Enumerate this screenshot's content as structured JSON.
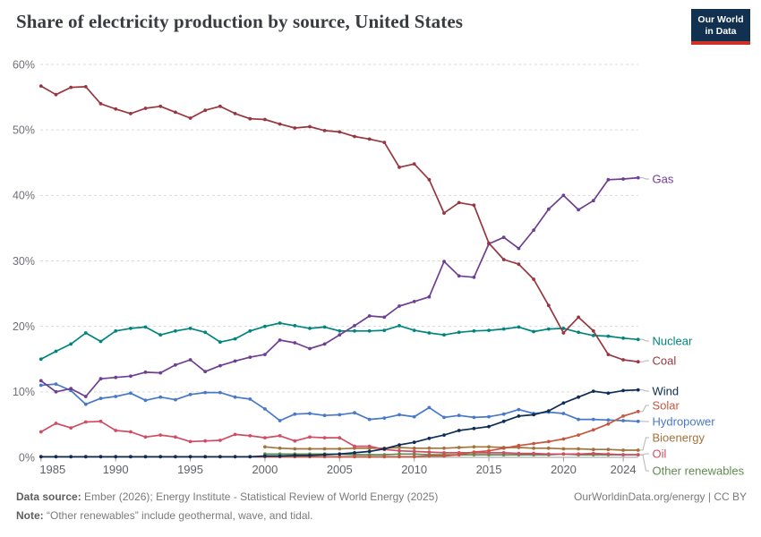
{
  "header": {
    "title": "Share of electricity production by source, United States",
    "logo_line1": "Our World",
    "logo_line2": "in Data",
    "logo_colors": {
      "box": "#12304f",
      "bar": "#cd3227"
    }
  },
  "chart_data": {
    "type": "line",
    "title": "Share of electricity production by source, United States",
    "xlabel": "",
    "ylabel": "",
    "grid": "dashed",
    "legend_position": "right-end-labels",
    "x_axis": {
      "range": [
        1985,
        2025
      ],
      "ticks": [
        1985,
        1990,
        1995,
        2000,
        2005,
        2010,
        2015,
        2020,
        2024
      ]
    },
    "y_axis": {
      "range": [
        0,
        60
      ],
      "ticks": [
        {
          "v": 0,
          "label": "0%"
        },
        {
          "v": 10,
          "label": "10%"
        },
        {
          "v": 20,
          "label": "20%"
        },
        {
          "v": 30,
          "label": "30%"
        },
        {
          "v": 40,
          "label": "40%"
        },
        {
          "v": 50,
          "label": "50%"
        },
        {
          "v": 60,
          "label": "60%"
        }
      ]
    },
    "x": [
      1985,
      1986,
      1987,
      1988,
      1989,
      1990,
      1991,
      1992,
      1993,
      1994,
      1995,
      1996,
      1997,
      1998,
      1999,
      2000,
      2001,
      2002,
      2003,
      2004,
      2005,
      2006,
      2007,
      2008,
      2009,
      2010,
      2011,
      2012,
      2013,
      2014,
      2015,
      2016,
      2017,
      2018,
      2019,
      2020,
      2021,
      2022,
      2023,
      2024,
      2025
    ],
    "series": [
      {
        "id": "other-renewables",
        "name": "Other renewables",
        "color": "#5f8b51",
        "label_y": 526,
        "values": [
          null,
          null,
          null,
          null,
          null,
          null,
          null,
          null,
          null,
          null,
          null,
          null,
          null,
          null,
          null,
          0.5,
          0.5,
          0.5,
          0.5,
          0.5,
          0.5,
          0.4,
          0.4,
          0.4,
          0.5,
          0.5,
          0.4,
          0.4,
          0.4,
          0.4,
          0.4,
          0.4,
          0.4,
          0.4,
          0.4,
          0.5,
          0.4,
          0.4,
          0.4,
          0.4,
          0.4
        ]
      },
      {
        "id": "bioenergy",
        "name": "Bioenergy",
        "color": "#a3733c",
        "label_y": 489,
        "values": [
          null,
          null,
          null,
          null,
          null,
          null,
          null,
          null,
          null,
          null,
          null,
          null,
          null,
          null,
          null,
          1.6,
          1.4,
          1.3,
          1.3,
          1.3,
          1.3,
          1.4,
          1.4,
          1.4,
          1.5,
          1.4,
          1.4,
          1.4,
          1.5,
          1.6,
          1.6,
          1.5,
          1.5,
          1.4,
          1.4,
          1.3,
          1.3,
          1.2,
          1.2,
          1.1,
          1.1
        ]
      },
      {
        "id": "oil",
        "name": "Oil",
        "color": "#cf4e63",
        "label_y": 507,
        "values": [
          3.9,
          5.2,
          4.5,
          5.4,
          5.5,
          4.1,
          3.9,
          3.1,
          3.4,
          3.1,
          2.4,
          2.5,
          2.6,
          3.5,
          3.3,
          3.0,
          3.3,
          2.5,
          3.1,
          3.0,
          3.0,
          1.7,
          1.7,
          1.2,
          1.0,
          0.9,
          0.8,
          0.7,
          0.7,
          0.7,
          0.7,
          0.7,
          0.6,
          0.6,
          0.5,
          0.5,
          0.5,
          0.6,
          0.5,
          0.4,
          0.4
        ]
      },
      {
        "id": "hydropower",
        "name": "Hydropower",
        "color": "#4878c9",
        "label_y": 471,
        "values": [
          11.0,
          11.2,
          10.2,
          8.1,
          9.0,
          9.3,
          9.8,
          8.7,
          9.2,
          8.8,
          9.6,
          9.9,
          9.9,
          9.2,
          8.9,
          7.4,
          5.6,
          6.6,
          6.7,
          6.4,
          6.5,
          6.8,
          5.8,
          6.0,
          6.5,
          6.2,
          7.6,
          6.1,
          6.4,
          6.1,
          6.2,
          6.6,
          7.3,
          6.7,
          6.9,
          6.7,
          5.8,
          5.8,
          5.7,
          5.6,
          5.5
        ]
      },
      {
        "id": "solar",
        "name": "Solar",
        "color": "#c8563f",
        "label_y": 453,
        "values": [
          0.1,
          0.1,
          0.1,
          0.1,
          0.1,
          0.1,
          0.1,
          0.1,
          0.1,
          0.1,
          0.1,
          0.1,
          0.1,
          0.1,
          0.1,
          0.1,
          0.1,
          0.1,
          0.1,
          0.1,
          0.1,
          0.1,
          0.1,
          0.1,
          0.1,
          0.1,
          0.2,
          0.2,
          0.4,
          0.8,
          1.0,
          1.4,
          1.8,
          2.1,
          2.4,
          2.8,
          3.4,
          4.2,
          5.1,
          6.3,
          7.0
        ]
      },
      {
        "id": "wind",
        "name": "Wind",
        "color": "#0e2d55",
        "label_y": 437,
        "values": [
          0.1,
          0.1,
          0.1,
          0.1,
          0.1,
          0.1,
          0.1,
          0.1,
          0.1,
          0.1,
          0.1,
          0.1,
          0.1,
          0.1,
          0.1,
          0.2,
          0.2,
          0.3,
          0.3,
          0.4,
          0.5,
          0.7,
          0.9,
          1.3,
          1.9,
          2.3,
          2.9,
          3.4,
          4.1,
          4.4,
          4.7,
          5.5,
          6.3,
          6.5,
          7.1,
          8.3,
          9.2,
          10.1,
          9.8,
          10.2,
          10.3
        ]
      },
      {
        "id": "nuclear",
        "name": "Nuclear",
        "color": "#00847e",
        "label_y": 381,
        "values": [
          15.0,
          16.2,
          17.3,
          19.0,
          17.7,
          19.3,
          19.7,
          19.9,
          18.7,
          19.3,
          19.7,
          19.1,
          17.6,
          18.1,
          19.3,
          20.0,
          20.5,
          20.1,
          19.7,
          19.9,
          19.3,
          19.3,
          19.3,
          19.4,
          20.1,
          19.4,
          19.0,
          18.7,
          19.1,
          19.3,
          19.4,
          19.6,
          19.9,
          19.2,
          19.6,
          19.7,
          19.1,
          18.6,
          18.5,
          18.2,
          18.0
        ]
      },
      {
        "id": "gas",
        "name": "Gas",
        "color": "#6d3e91",
        "label_y": 200,
        "values": [
          11.7,
          10.0,
          10.5,
          9.3,
          12.0,
          12.2,
          12.4,
          13.0,
          12.9,
          14.1,
          14.9,
          13.1,
          14.0,
          14.7,
          15.3,
          15.7,
          17.9,
          17.5,
          16.6,
          17.3,
          18.7,
          20.1,
          21.6,
          21.4,
          23.1,
          23.8,
          24.5,
          29.9,
          27.7,
          27.5,
          32.6,
          33.6,
          31.9,
          34.7,
          37.9,
          40.0,
          37.8,
          39.2,
          42.4,
          42.5,
          42.7
        ]
      },
      {
        "id": "coal",
        "name": "Coal",
        "color": "#97363f",
        "label_y": 403,
        "values": [
          56.7,
          55.4,
          56.5,
          56.6,
          54.0,
          53.2,
          52.5,
          53.3,
          53.6,
          52.7,
          51.8,
          53.0,
          53.6,
          52.5,
          51.7,
          51.6,
          50.9,
          50.3,
          50.5,
          49.9,
          49.7,
          49.0,
          48.6,
          48.1,
          44.3,
          44.8,
          42.4,
          37.3,
          38.9,
          38.5,
          32.7,
          30.2,
          29.5,
          27.2,
          23.2,
          19.0,
          21.4,
          19.3,
          15.7,
          14.9,
          14.6
        ]
      }
    ]
  },
  "footer": {
    "data_source_label": "Data source:",
    "data_source_text": "Ember (2026); Energy Institute - Statistical Review of World Energy (2025)",
    "link_text": "OurWorldinData.org/energy | CC BY",
    "note_label": "Note:",
    "note_text": "“Other renewables” include geothermal, wave, and tidal."
  }
}
